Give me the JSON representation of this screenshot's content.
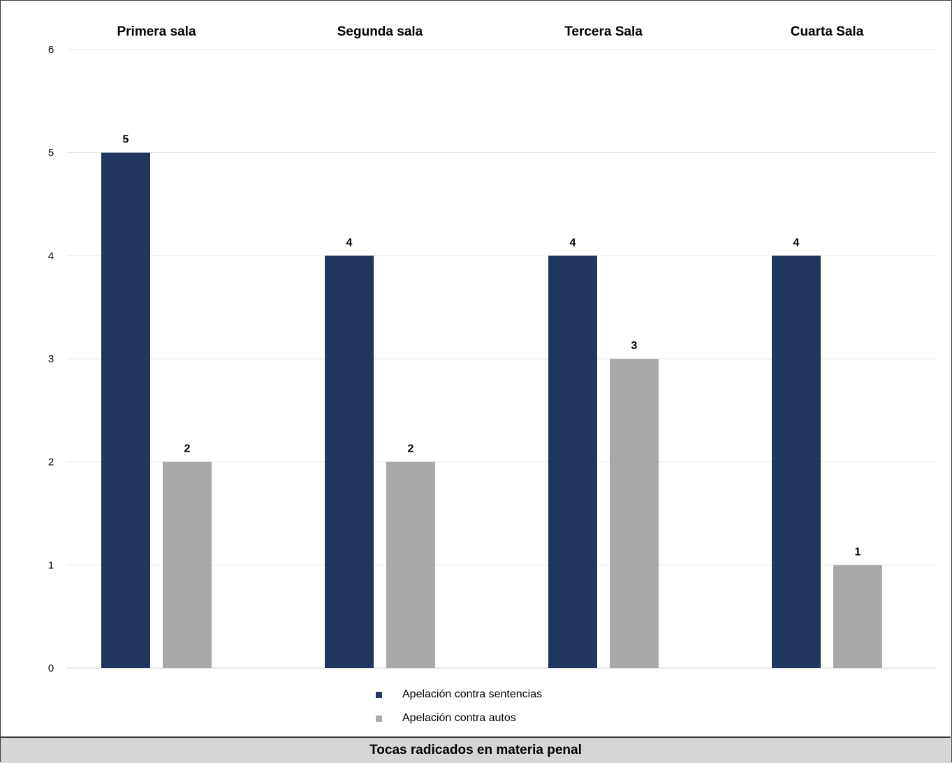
{
  "chart_data": {
    "type": "bar",
    "title": "Tocas radicados en materia penal",
    "categories": [
      "Primera sala",
      "Segunda sala",
      "Tercera Sala",
      "Cuarta Sala"
    ],
    "series": [
      {
        "name": "Apelación contra sentencias",
        "values": [
          5,
          4,
          4,
          4
        ],
        "color": "#21365e"
      },
      {
        "name": "Apelación contra autos",
        "values": [
          2,
          2,
          3,
          1
        ],
        "color": "#a9a9a9"
      }
    ],
    "ylim": [
      0,
      6
    ],
    "yticks": [
      "0",
      "1",
      "2",
      "3",
      "4",
      "5",
      "6"
    ],
    "grid": true,
    "legend_position": "bottom",
    "category_labels_position": "top"
  }
}
